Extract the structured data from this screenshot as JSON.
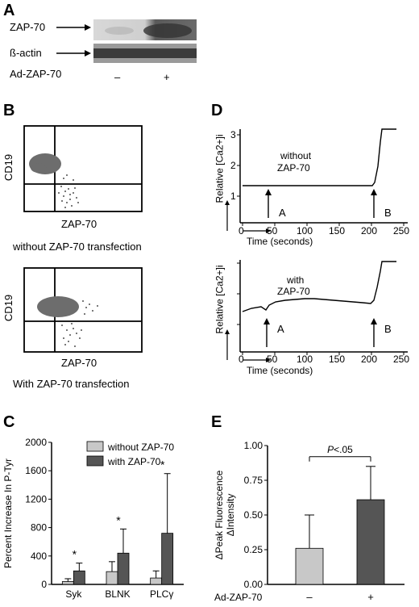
{
  "panel_a": {
    "letter": "A",
    "row1": "ZAP-70",
    "row2": "ß-actin",
    "row3": "Ad-ZAP-70",
    "minus": "–",
    "plus": "+"
  },
  "panel_b": {
    "letter": "B",
    "y_label": "CD19",
    "x_label": "ZAP-70",
    "caption_top": "without ZAP-70 transfection",
    "caption_bottom": "With  ZAP-70 transfection"
  },
  "panel_d": {
    "letter": "D",
    "y_label": "Relative [Ca2+]i",
    "x_label": "Time (seconds)",
    "annotation_top": [
      "without",
      "ZAP-70"
    ],
    "annotation_bottom": [
      "with",
      "ZAP-70"
    ],
    "arrow_a": "A",
    "arrow_b": "B",
    "x_ticks": [
      "0",
      "50",
      "100",
      "150",
      "200",
      "250"
    ],
    "y_ticks": [
      "1",
      "2",
      "3"
    ]
  },
  "chart_data": [
    {
      "panel": "C",
      "type": "bar",
      "ylabel": "Percent Increase In P-Tyr",
      "categories": [
        "Syk",
        "BLNK",
        "PLCγ"
      ],
      "ylim": [
        0,
        2000
      ],
      "yticks": [
        0,
        400,
        800,
        1200,
        1600,
        2000
      ],
      "legend_placement": "top-right",
      "series": [
        {
          "name": "without ZAP-70",
          "color": "#c8c8c8",
          "values": [
            40,
            180,
            90
          ],
          "errors": [
            40,
            140,
            100
          ]
        },
        {
          "name": "with ZAP-70",
          "color": "#555555",
          "values": [
            190,
            440,
            720
          ],
          "errors": [
            110,
            340,
            840
          ]
        }
      ],
      "significance": [
        "*",
        "*",
        "*"
      ]
    },
    {
      "panel": "E",
      "type": "bar",
      "ylabel": [
        "ΔPeak Fluorescence",
        "ΔIntensity"
      ],
      "xlabel": "Ad-ZAP-70",
      "categories": [
        "–",
        "+"
      ],
      "ylim": [
        0,
        1.0
      ],
      "yticks": [
        "0.00",
        "0.25",
        "0.50",
        "0.75",
        "1.00"
      ],
      "values": [
        0.26,
        0.61
      ],
      "errors": [
        0.24,
        0.24
      ],
      "colors": [
        "#c8c8c8",
        "#555555"
      ],
      "significance": "P<.05"
    }
  ]
}
